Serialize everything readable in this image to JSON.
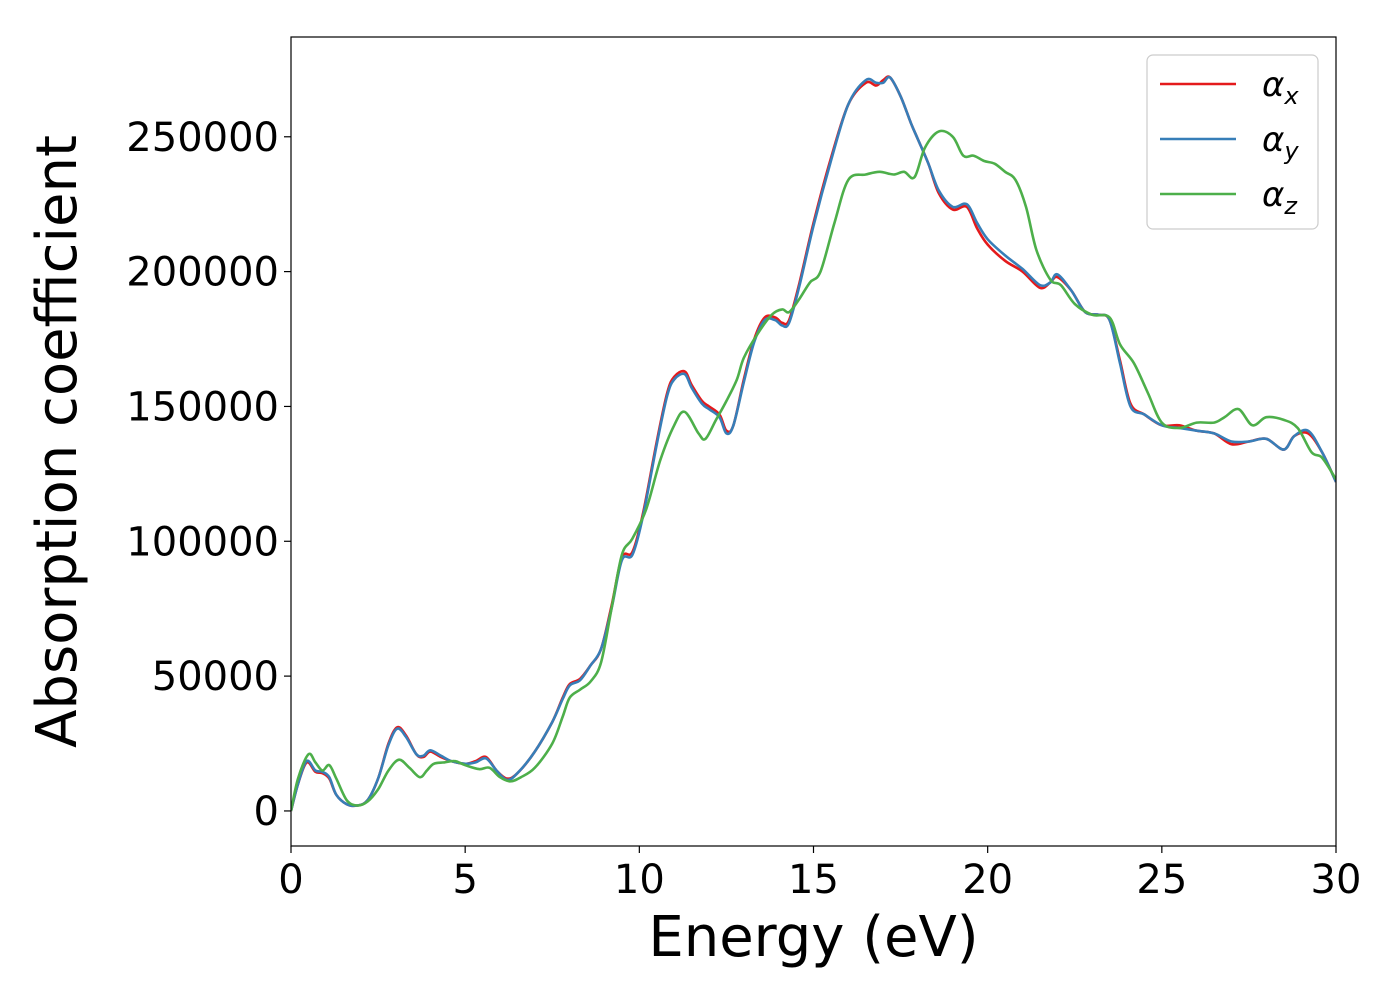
{
  "chart_data": {
    "type": "line",
    "xlabel": "Energy (eV)",
    "ylabel": "Absorption coefficient",
    "xlim": [
      0,
      30
    ],
    "ylim": [
      -13000,
      287000
    ],
    "xticks": [
      0,
      5,
      10,
      15,
      20,
      25,
      30
    ],
    "yticks": [
      0,
      50000,
      100000,
      150000,
      200000,
      250000
    ],
    "grid": false,
    "legend_position": "top-right",
    "series": [
      {
        "name": "αx",
        "symbol": "α",
        "subscript": "x",
        "color": "#e41a1c",
        "x": [
          0,
          0.2,
          0.45,
          0.7,
          0.9,
          1.1,
          1.3,
          1.6,
          1.9,
          2.2,
          2.5,
          2.8,
          3.05,
          3.3,
          3.6,
          3.8,
          4.0,
          4.3,
          4.6,
          5.0,
          5.3,
          5.6,
          5.9,
          6.2,
          6.5,
          7.0,
          7.5,
          7.8,
          8.0,
          8.3,
          8.6,
          8.9,
          9.2,
          9.5,
          9.8,
          10.1,
          10.5,
          10.8,
          11.0,
          11.3,
          11.5,
          11.8,
          12.0,
          12.3,
          12.5,
          12.7,
          13.0,
          13.3,
          13.6,
          13.9,
          14.1,
          14.3,
          14.6,
          15.0,
          15.5,
          16.0,
          16.5,
          16.8,
          17.0,
          17.2,
          17.5,
          17.8,
          18.0,
          18.3,
          18.6,
          19.0,
          19.4,
          19.7,
          20.0,
          20.5,
          21.0,
          21.5,
          21.8,
          22.0,
          22.4,
          22.8,
          23.2,
          23.5,
          23.8,
          24.1,
          24.5,
          25.0,
          25.5,
          26.0,
          26.5,
          27.0,
          27.5,
          28.0,
          28.5,
          28.8,
          29.2,
          29.6,
          30.0
        ],
        "y": [
          0,
          10000,
          18000,
          14500,
          14000,
          12000,
          6000,
          2500,
          2000,
          4000,
          12000,
          25000,
          31000,
          28000,
          21000,
          20000,
          22000,
          20000,
          18500,
          17500,
          18500,
          20000,
          15000,
          12000,
          14000,
          22000,
          33000,
          42000,
          47000,
          49000,
          54000,
          60000,
          76000,
          94000,
          96000,
          110000,
          137000,
          155000,
          161000,
          163000,
          158000,
          152000,
          150000,
          147000,
          141000,
          143000,
          160000,
          175000,
          183000,
          183000,
          181000,
          182000,
          196000,
          218000,
          242000,
          262000,
          270000,
          269000,
          271000,
          272000,
          265000,
          255000,
          249000,
          240000,
          229000,
          223000,
          224000,
          216000,
          210000,
          204000,
          200000,
          194000,
          196000,
          198000,
          193000,
          185000,
          184000,
          182000,
          167000,
          151000,
          147000,
          143000,
          143000,
          141000,
          140000,
          136000,
          137000,
          138000,
          134000,
          139000,
          140000,
          133000,
          122000
        ]
      },
      {
        "name": "αy",
        "symbol": "α",
        "subscript": "y",
        "color": "#377eb8",
        "x": [
          0,
          0.2,
          0.45,
          0.7,
          0.9,
          1.1,
          1.3,
          1.6,
          1.9,
          2.2,
          2.5,
          2.8,
          3.05,
          3.3,
          3.6,
          3.8,
          4.0,
          4.3,
          4.6,
          5.0,
          5.3,
          5.6,
          5.9,
          6.2,
          6.5,
          7.0,
          7.5,
          7.8,
          8.0,
          8.3,
          8.6,
          8.9,
          9.2,
          9.5,
          9.8,
          10.1,
          10.5,
          10.8,
          11.0,
          11.3,
          11.5,
          11.8,
          12.0,
          12.3,
          12.5,
          12.7,
          13.0,
          13.3,
          13.6,
          13.9,
          14.1,
          14.3,
          14.6,
          15.0,
          15.5,
          16.0,
          16.5,
          16.8,
          17.0,
          17.2,
          17.5,
          17.8,
          18.0,
          18.3,
          18.6,
          19.0,
          19.4,
          19.7,
          20.0,
          20.5,
          21.0,
          21.5,
          21.8,
          22.0,
          22.4,
          22.8,
          23.2,
          23.5,
          23.8,
          24.1,
          24.5,
          25.0,
          25.5,
          26.0,
          26.5,
          27.0,
          27.5,
          28.0,
          28.5,
          28.8,
          29.2,
          29.6,
          30.0
        ],
        "y": [
          0,
          10000,
          18500,
          15000,
          14500,
          12500,
          6000,
          2500,
          2000,
          4000,
          12000,
          24500,
          30500,
          27500,
          21000,
          20500,
          22500,
          20500,
          18500,
          17500,
          18000,
          19500,
          15000,
          11500,
          14000,
          22000,
          33000,
          41500,
          46500,
          48500,
          54000,
          60000,
          75000,
          93000,
          95000,
          109000,
          136000,
          154000,
          160000,
          162000,
          157000,
          151000,
          149000,
          146000,
          140000,
          143000,
          159000,
          174000,
          182000,
          182000,
          180000,
          181000,
          195000,
          217000,
          241000,
          262000,
          271000,
          270000,
          270000,
          272000,
          265000,
          255000,
          249000,
          240000,
          230000,
          224000,
          225000,
          218000,
          212000,
          206000,
          201000,
          195000,
          196000,
          199000,
          193000,
          185000,
          184000,
          182000,
          166000,
          150000,
          147000,
          143000,
          142000,
          141000,
          140000,
          137000,
          137000,
          138000,
          134000,
          139000,
          141000,
          133000,
          122000
        ]
      },
      {
        "name": "αz",
        "symbol": "α",
        "subscript": "z",
        "color": "#4daf4a",
        "x": [
          0,
          0.2,
          0.5,
          0.7,
          0.9,
          1.1,
          1.3,
          1.6,
          1.9,
          2.2,
          2.5,
          2.8,
          3.1,
          3.4,
          3.7,
          3.9,
          4.1,
          4.4,
          4.7,
          5.0,
          5.4,
          5.7,
          6.0,
          6.3,
          6.6,
          7.0,
          7.5,
          7.8,
          8.0,
          8.3,
          8.6,
          8.9,
          9.2,
          9.5,
          9.8,
          10.2,
          10.6,
          11.0,
          11.3,
          11.7,
          11.9,
          12.2,
          12.5,
          12.8,
          13.0,
          13.4,
          13.8,
          14.1,
          14.3,
          14.6,
          14.9,
          15.2,
          15.6,
          16.0,
          16.5,
          16.9,
          17.3,
          17.6,
          17.9,
          18.2,
          18.6,
          19.0,
          19.3,
          19.6,
          19.9,
          20.2,
          20.5,
          20.8,
          21.1,
          21.4,
          21.8,
          22.1,
          22.5,
          23.0,
          23.5,
          23.8,
          24.2,
          24.6,
          25.0,
          25.5,
          26.0,
          26.5,
          26.8,
          27.2,
          27.6,
          28.0,
          28.5,
          28.9,
          29.3,
          29.6,
          30.0
        ],
        "y": [
          0,
          12000,
          21000,
          18000,
          15000,
          17000,
          12000,
          4000,
          2000,
          3500,
          8000,
          15000,
          19000,
          16000,
          12500,
          15000,
          17500,
          18000,
          18500,
          17000,
          15500,
          16000,
          12500,
          11000,
          12500,
          16000,
          25000,
          35000,
          42000,
          45000,
          48000,
          55000,
          75000,
          95000,
          101000,
          112000,
          130000,
          143000,
          148000,
          140000,
          138000,
          145000,
          152000,
          160000,
          168000,
          177000,
          184000,
          186000,
          185000,
          190000,
          196000,
          200000,
          218000,
          234000,
          236000,
          237000,
          236000,
          237000,
          235000,
          246000,
          252000,
          250000,
          243000,
          243000,
          241000,
          240000,
          237000,
          234000,
          224000,
          208000,
          197000,
          195000,
          188000,
          184000,
          183000,
          173000,
          166000,
          155000,
          144000,
          142000,
          144000,
          144000,
          146000,
          149000,
          143000,
          146000,
          145000,
          142000,
          133000,
          131000,
          123000
        ]
      }
    ]
  }
}
